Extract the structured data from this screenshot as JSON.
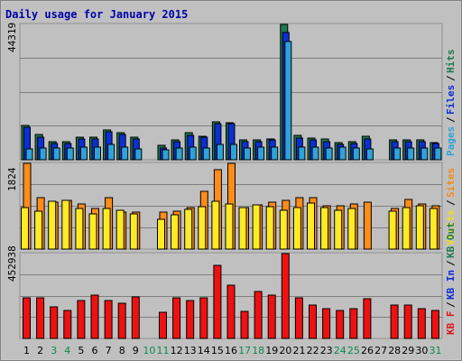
{
  "chart_data": [
    {
      "type": "bar",
      "title": "Daily usage for January 2015",
      "panel": "top",
      "y_max_label": "44319",
      "ylim": [
        0,
        44319
      ],
      "grid": true,
      "categories": [
        "1",
        "2",
        "3",
        "4",
        "5",
        "6",
        "7",
        "8",
        "9",
        "10",
        "11",
        "12",
        "13",
        "14",
        "15",
        "16",
        "17",
        "18",
        "19",
        "20",
        "21",
        "22",
        "23",
        "24",
        "25",
        "26",
        "27",
        "28",
        "29",
        "30",
        "31"
      ],
      "legend": [
        {
          "label": "Pages",
          "color": "#2ea3d9"
        },
        {
          "label": "Files",
          "color": "#0b2fd6"
        },
        {
          "label": "Hits",
          "color": "#1d7a4f"
        }
      ],
      "legend_separator": "/",
      "series": [
        {
          "name": "Hits",
          "color": "#1d7a4f",
          "values": [
            11300,
            8200,
            5800,
            5800,
            7300,
            7300,
            9800,
            8800,
            7300,
            0,
            4600,
            6400,
            8900,
            7800,
            12300,
            12200,
            6500,
            6600,
            6900,
            44319,
            8000,
            7100,
            6700,
            5700,
            5900,
            7800,
            0,
            6600,
            6400,
            6500,
            5700
          ]
        },
        {
          "name": "Files",
          "color": "#0b2fd6",
          "values": [
            10700,
            7500,
            5300,
            5400,
            6800,
            6800,
            9200,
            8200,
            6700,
            0,
            3900,
            5800,
            8000,
            7300,
            11800,
            11800,
            5900,
            5800,
            6400,
            41600,
            7000,
            6600,
            6000,
            5100,
            5300,
            6800,
            0,
            5900,
            5900,
            5800,
            5200
          ]
        },
        {
          "name": "Pages",
          "color": "#2ea3d9",
          "values": [
            3400,
            3800,
            3900,
            3900,
            4100,
            4000,
            4900,
            4100,
            3600,
            0,
            3200,
            3800,
            4200,
            3900,
            5000,
            4900,
            3800,
            4000,
            4200,
            38700,
            4200,
            4200,
            3800,
            4000,
            3800,
            3600,
            0,
            3800,
            3700,
            3800,
            3800
          ]
        }
      ]
    },
    {
      "type": "bar",
      "panel": "middle",
      "y_max_label": "1824",
      "ylim": [
        0,
        1824
      ],
      "grid": true,
      "categories": [
        "1",
        "2",
        "3",
        "4",
        "5",
        "6",
        "7",
        "8",
        "9",
        "10",
        "11",
        "12",
        "13",
        "14",
        "15",
        "16",
        "17",
        "18",
        "19",
        "20",
        "21",
        "22",
        "23",
        "24",
        "25",
        "26",
        "27",
        "28",
        "29",
        "30",
        "31"
      ],
      "legend": [
        {
          "label": "Visits",
          "color": "#f2dc1c"
        },
        {
          "label": "Sites",
          "color": "#f28a1c"
        }
      ],
      "legend_separator": "/",
      "series": [
        {
          "name": "Sites",
          "color": "#ff8c1a",
          "values": [
            1824,
            1100,
            1000,
            1040,
            960,
            860,
            1100,
            790,
            780,
            0,
            780,
            800,
            880,
            1220,
            1690,
            1824,
            880,
            950,
            1000,
            1040,
            1100,
            1100,
            930,
            920,
            960,
            990,
            0,
            870,
            1060,
            960,
            920
          ]
        },
        {
          "name": "Visits",
          "color": "#ffea26",
          "values": [
            880,
            800,
            1020,
            1040,
            870,
            740,
            860,
            820,
            750,
            0,
            640,
            720,
            850,
            900,
            1020,
            960,
            880,
            950,
            900,
            830,
            880,
            970,
            890,
            820,
            860,
            0,
            0,
            800,
            880,
            920,
            870
          ]
        }
      ]
    },
    {
      "type": "bar",
      "panel": "bottom",
      "y_max_label": "452938",
      "ylim": [
        0,
        452938
      ],
      "grid": true,
      "categories": [
        "1",
        "2",
        "3",
        "4",
        "5",
        "6",
        "7",
        "8",
        "9",
        "10",
        "11",
        "12",
        "13",
        "14",
        "15",
        "16",
        "17",
        "18",
        "19",
        "20",
        "21",
        "22",
        "23",
        "24",
        "25",
        "26",
        "27",
        "28",
        "29",
        "30",
        "31"
      ],
      "legend": [
        {
          "label": "KB F",
          "color": "#e01515"
        },
        {
          "label": "KB In",
          "color": "#0b2fd6"
        },
        {
          "label": "KB Out",
          "color": "#1d7a4f"
        }
      ],
      "legend_separator": "/",
      "series": [
        {
          "name": "KB F",
          "color": "#ee1111",
          "values": [
            215000,
            215000,
            170000,
            150000,
            200000,
            230000,
            200000,
            190000,
            220000,
            0,
            140000,
            215000,
            200000,
            215000,
            390000,
            285000,
            145000,
            250000,
            230000,
            452938,
            215000,
            180000,
            160000,
            150000,
            160000,
            210000,
            0,
            180000,
            180000,
            160000,
            150000
          ]
        }
      ]
    }
  ],
  "x_axis": {
    "labels": [
      "1",
      "2",
      "3",
      "4",
      "5",
      "6",
      "7",
      "8",
      "9",
      "10",
      "11",
      "12",
      "13",
      "14",
      "15",
      "16",
      "17",
      "18",
      "19",
      "20",
      "21",
      "22",
      "23",
      "24",
      "25",
      "26",
      "27",
      "28",
      "29",
      "30",
      "31"
    ],
    "weekend_days": [
      "3",
      "4",
      "10",
      "11",
      "17",
      "18",
      "24",
      "25",
      "31"
    ],
    "weekday_color": "#000000",
    "weekend_color": "#0b8a4e"
  },
  "colors": {
    "background": "#ffffff",
    "plot_area": "#c0c0c0",
    "title": "#0000aa",
    "gridline": "#808080"
  }
}
